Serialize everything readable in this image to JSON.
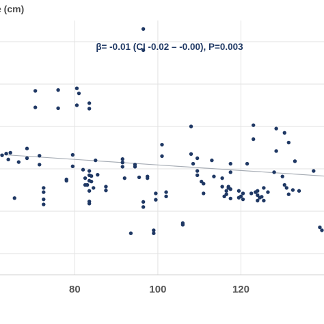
{
  "chart_data": {
    "type": "scatter",
    "ylabel": "e (cm)",
    "annotation": "β= -0.01 (CI -0.02 – -0.00), P=0.003",
    "xlim": [
      62,
      140
    ],
    "ylim": [
      -0.5,
      5.5
    ],
    "x_ticks": [
      80,
      100,
      120
    ],
    "y_grid": [
      0,
      1,
      2,
      3,
      4,
      5
    ],
    "grid": true,
    "trendline": {
      "x": [
        62,
        140
      ],
      "y": [
        2.34,
        1.83
      ]
    },
    "points": [
      {
        "x": 62.5,
        "y": 2.32
      },
      {
        "x": 63.5,
        "y": 2.36
      },
      {
        "x": 64.5,
        "y": 2.38
      },
      {
        "x": 64,
        "y": 2.22
      },
      {
        "x": 65.5,
        "y": 1.31
      },
      {
        "x": 66.5,
        "y": 2.16
      },
      {
        "x": 68.5,
        "y": 2.25
      },
      {
        "x": 68.5,
        "y": 2.48
      },
      {
        "x": 71.5,
        "y": 2.31
      },
      {
        "x": 71.5,
        "y": 2.1
      },
      {
        "x": 70.5,
        "y": 3.84
      },
      {
        "x": 70.5,
        "y": 3.45
      },
      {
        "x": 72.5,
        "y": 1.55
      },
      {
        "x": 72.5,
        "y": 1.45
      },
      {
        "x": 72.5,
        "y": 1.28
      },
      {
        "x": 72.5,
        "y": 1.16
      },
      {
        "x": 76,
        "y": 3.86
      },
      {
        "x": 76,
        "y": 3.43
      },
      {
        "x": 78,
        "y": 1.75
      },
      {
        "x": 78,
        "y": 1.72
      },
      {
        "x": 79.5,
        "y": 2.33
      },
      {
        "x": 79.5,
        "y": 2.06
      },
      {
        "x": 80.5,
        "y": 3.9
      },
      {
        "x": 80.5,
        "y": 3.5
      },
      {
        "x": 81,
        "y": 3.78
      },
      {
        "x": 82,
        "y": 1.98
      },
      {
        "x": 82.5,
        "y": 1.78
      },
      {
        "x": 82.5,
        "y": 1.62
      },
      {
        "x": 83.5,
        "y": 3.55
      },
      {
        "x": 83.5,
        "y": 3.42
      },
      {
        "x": 83.5,
        "y": 1.95
      },
      {
        "x": 83.5,
        "y": 1.85
      },
      {
        "x": 83.5,
        "y": 1.72
      },
      {
        "x": 84,
        "y": 1.7
      },
      {
        "x": 84,
        "y": 1.83
      },
      {
        "x": 84.5,
        "y": 1.55
      },
      {
        "x": 85,
        "y": 2.2
      },
      {
        "x": 83.5,
        "y": 1.48
      },
      {
        "x": 83.5,
        "y": 1.23
      },
      {
        "x": 83,
        "y": 1.62
      },
      {
        "x": 83,
        "y": 1.62
      },
      {
        "x": 83.5,
        "y": 1.18
      },
      {
        "x": 85.5,
        "y": 1.86
      },
      {
        "x": 87.5,
        "y": 1.58
      },
      {
        "x": 87.5,
        "y": 1.49
      },
      {
        "x": 91.5,
        "y": 2.05
      },
      {
        "x": 91.5,
        "y": 2.15
      },
      {
        "x": 91.5,
        "y": 2.23
      },
      {
        "x": 92,
        "y": 1.78
      },
      {
        "x": 93.5,
        "y": 0.48
      },
      {
        "x": 94.5,
        "y": 2.1
      },
      {
        "x": 94.5,
        "y": 2.05
      },
      {
        "x": 95.5,
        "y": 1.8
      },
      {
        "x": 96.5,
        "y": 5.3
      },
      {
        "x": 96.5,
        "y": 4.8
      },
      {
        "x": 96.5,
        "y": 1.22
      },
      {
        "x": 96.5,
        "y": 1.1
      },
      {
        "x": 97.5,
        "y": 1.82
      },
      {
        "x": 97.5,
        "y": 1.78
      },
      {
        "x": 99,
        "y": 0.55
      },
      {
        "x": 99,
        "y": 0.48
      },
      {
        "x": 99.5,
        "y": 1.42
      },
      {
        "x": 99.5,
        "y": 1.27
      },
      {
        "x": 101,
        "y": 2.57
      },
      {
        "x": 101,
        "y": 2.3
      },
      {
        "x": 102,
        "y": 1.45
      },
      {
        "x": 102,
        "y": 1.35
      },
      {
        "x": 106,
        "y": 0.72
      },
      {
        "x": 106,
        "y": 0.68
      },
      {
        "x": 108,
        "y": 3.0
      },
      {
        "x": 108,
        "y": 2.35
      },
      {
        "x": 108.5,
        "y": 2.12
      },
      {
        "x": 109.5,
        "y": 2.25
      },
      {
        "x": 109.5,
        "y": 1.95
      },
      {
        "x": 109.5,
        "y": 1.85
      },
      {
        "x": 110.5,
        "y": 1.7
      },
      {
        "x": 111,
        "y": 1.65
      },
      {
        "x": 111,
        "y": 1.42
      },
      {
        "x": 113,
        "y": 2.2
      },
      {
        "x": 113.5,
        "y": 1.82
      },
      {
        "x": 115.5,
        "y": 1.78
      },
      {
        "x": 115.5,
        "y": 1.58
      },
      {
        "x": 116,
        "y": 1.35
      },
      {
        "x": 116.5,
        "y": 1.48
      },
      {
        "x": 116.5,
        "y": 1.4
      },
      {
        "x": 117,
        "y": 1.55
      },
      {
        "x": 117,
        "y": 1.58
      },
      {
        "x": 117.5,
        "y": 1.92
      },
      {
        "x": 117.5,
        "y": 1.52
      },
      {
        "x": 117.5,
        "y": 2.12
      },
      {
        "x": 117.5,
        "y": 1.3
      },
      {
        "x": 119.5,
        "y": 1.48
      },
      {
        "x": 119.5,
        "y": 1.32
      },
      {
        "x": 120,
        "y": 1.35
      },
      {
        "x": 120.5,
        "y": 1.42
      },
      {
        "x": 120.5,
        "y": 1.28
      },
      {
        "x": 121.5,
        "y": 2.12
      },
      {
        "x": 122.5,
        "y": 1.42
      },
      {
        "x": 123,
        "y": 3.03
      },
      {
        "x": 123,
        "y": 2.7
      },
      {
        "x": 123.5,
        "y": 1.45
      },
      {
        "x": 124,
        "y": 1.38
      },
      {
        "x": 124.5,
        "y": 1.32
      },
      {
        "x": 124,
        "y": 1.48
      },
      {
        "x": 125,
        "y": 1.34
      },
      {
        "x": 125.5,
        "y": 1.55
      },
      {
        "x": 125.5,
        "y": 1.25
      },
      {
        "x": 124,
        "y": 1.25
      },
      {
        "x": 126.5,
        "y": 1.45
      },
      {
        "x": 128,
        "y": 1.92
      },
      {
        "x": 128.5,
        "y": 2.95
      },
      {
        "x": 128.5,
        "y": 2.42
      },
      {
        "x": 130,
        "y": 1.82
      },
      {
        "x": 130.5,
        "y": 1.62
      },
      {
        "x": 130.5,
        "y": 2.85
      },
      {
        "x": 131,
        "y": 1.55
      },
      {
        "x": 131.5,
        "y": 2.62
      },
      {
        "x": 131.5,
        "y": 1.4
      },
      {
        "x": 132.5,
        "y": 1.5
      },
      {
        "x": 133,
        "y": 2.18
      },
      {
        "x": 134,
        "y": 1.48
      },
      {
        "x": 137.5,
        "y": 1.95
      },
      {
        "x": 139,
        "y": 0.62
      },
      {
        "x": 139.5,
        "y": 0.55
      }
    ]
  }
}
